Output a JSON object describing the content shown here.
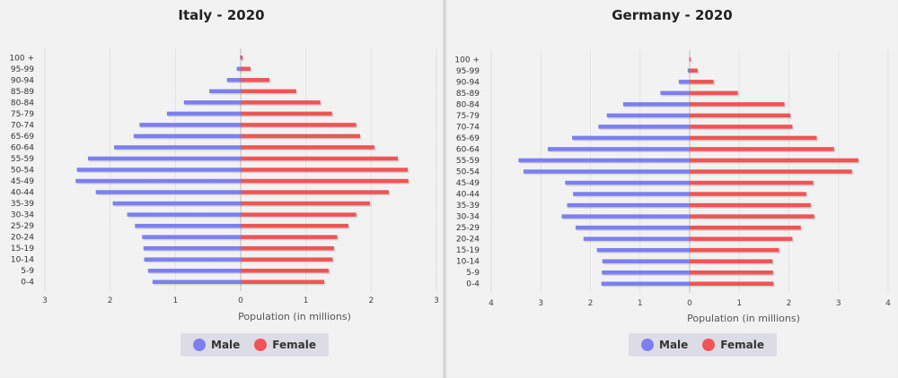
{
  "chart_data": [
    {
      "type": "bar",
      "orientation": "horizontal",
      "title": "Italy - 2020",
      "xlabel": "Population (in millions)",
      "xlim": [
        -3,
        3
      ],
      "x_ticks": [
        "3",
        "2",
        "1",
        "0",
        "1",
        "2",
        "3"
      ],
      "categories": [
        "0-4",
        "5-9",
        "10-14",
        "15-19",
        "20-24",
        "25-29",
        "30-34",
        "35-39",
        "40-44",
        "45-49",
        "50-54",
        "55-59",
        "60-64",
        "65-69",
        "70-74",
        "75-79",
        "80-84",
        "85-89",
        "90-94",
        "95-99",
        "100 +"
      ],
      "series": [
        {
          "name": "Male",
          "color": "#7b7fef",
          "values": [
            1.35,
            1.42,
            1.48,
            1.49,
            1.51,
            1.62,
            1.74,
            1.96,
            2.22,
            2.53,
            2.51,
            2.34,
            1.94,
            1.64,
            1.55,
            1.13,
            0.87,
            0.48,
            0.21,
            0.06,
            0.01
          ]
        },
        {
          "name": "Female",
          "color": "#ee5555",
          "values": [
            1.28,
            1.35,
            1.41,
            1.43,
            1.48,
            1.65,
            1.77,
            1.98,
            2.27,
            2.57,
            2.56,
            2.41,
            2.05,
            1.83,
            1.77,
            1.4,
            1.22,
            0.85,
            0.44,
            0.15,
            0.03
          ]
        }
      ],
      "legend": {
        "position": "bottom-center"
      }
    },
    {
      "type": "bar",
      "orientation": "horizontal",
      "title": "Germany - 2020",
      "xlabel": "Population (in millions)",
      "xlim": [
        -4,
        4
      ],
      "x_ticks": [
        "4",
        "3",
        "2",
        "1",
        "0",
        "1",
        "2",
        "3",
        "4"
      ],
      "categories": [
        "0-4",
        "5-9",
        "10-14",
        "15-19",
        "20-24",
        "25-29",
        "30-34",
        "35-39",
        "40-44",
        "45-49",
        "50-54",
        "55-59",
        "60-64",
        "65-69",
        "70-74",
        "75-79",
        "80-84",
        "85-89",
        "90-94",
        "95-99",
        "100 +"
      ],
      "series": [
        {
          "name": "Male",
          "color": "#7b7fef",
          "values": [
            1.78,
            1.77,
            1.76,
            1.87,
            2.14,
            2.3,
            2.58,
            2.47,
            2.35,
            2.51,
            3.35,
            3.45,
            2.86,
            2.37,
            1.84,
            1.67,
            1.34,
            0.59,
            0.22,
            0.04,
            0.01
          ]
        },
        {
          "name": "Female",
          "color": "#ee5555",
          "values": [
            1.69,
            1.68,
            1.67,
            1.8,
            2.07,
            2.24,
            2.51,
            2.44,
            2.35,
            2.49,
            3.27,
            3.4,
            2.91,
            2.56,
            2.07,
            2.03,
            1.91,
            0.97,
            0.48,
            0.16,
            0.02
          ]
        }
      ],
      "legend": {
        "position": "bottom-center"
      }
    }
  ]
}
